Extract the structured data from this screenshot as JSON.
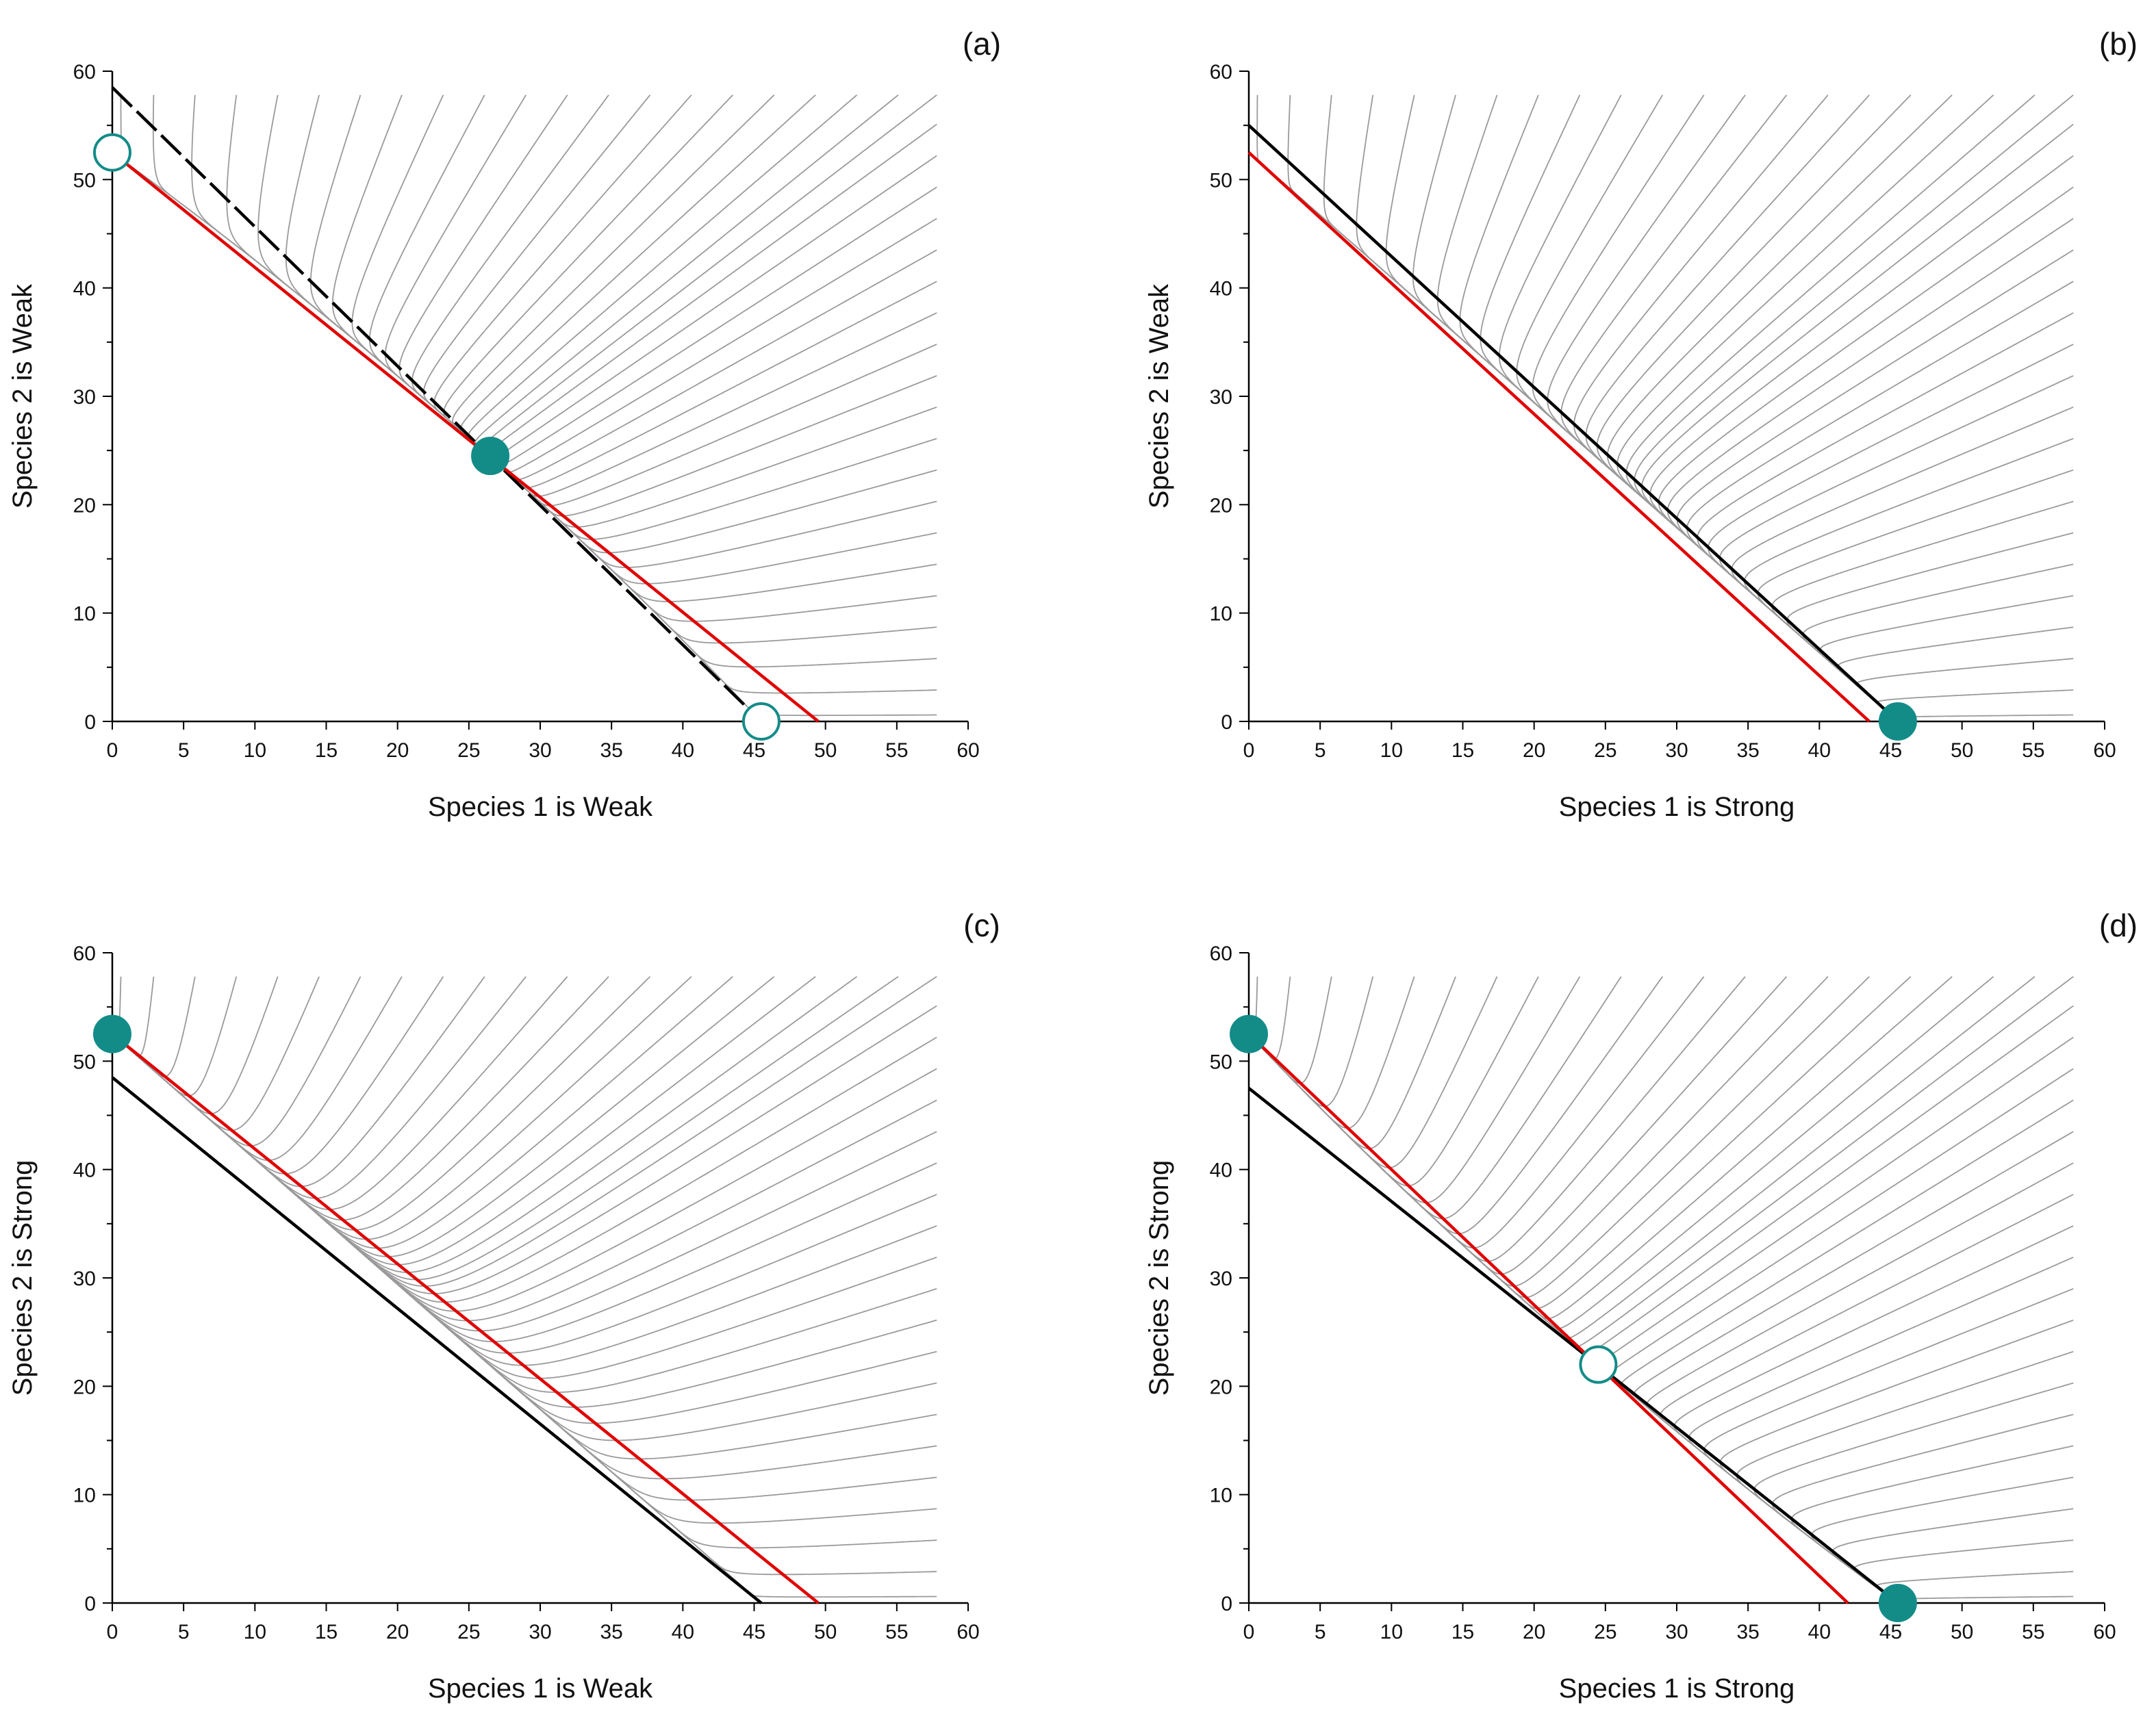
{
  "chart_data": [
    {
      "type": "line",
      "panel_label": "(a)",
      "xlabel": "Species 1 is Weak",
      "ylabel": "Species 2 is Weak",
      "xlim": [
        0,
        60
      ],
      "ylim": [
        0,
        60
      ],
      "xticks": [
        "0",
        "5",
        "10",
        "15",
        "20",
        "25",
        "30",
        "35",
        "40",
        "45",
        "50",
        "55",
        "60"
      ],
      "yticks": [
        "0",
        "10",
        "20",
        "30",
        "40",
        "50",
        "60"
      ],
      "nullclines": [
        {
          "color": "#000000",
          "style": "dashed",
          "x": [
            0,
            45.5
          ],
          "y": [
            58.5,
            0
          ]
        },
        {
          "color": "#e00000",
          "style": "solid",
          "x": [
            0,
            49.5
          ],
          "y": [
            52.5,
            0
          ]
        }
      ],
      "equilibria": [
        {
          "x": 0,
          "y": 52.5,
          "filled": false
        },
        {
          "x": 26.5,
          "y": 24.5,
          "filled": true
        },
        {
          "x": 45.5,
          "y": 0,
          "filled": false
        }
      ],
      "trajectory_color": "#9a9a9a"
    },
    {
      "type": "line",
      "panel_label": "(b)",
      "xlabel": "Species 1 is Strong",
      "ylabel": "Species 2 is Weak",
      "xlim": [
        0,
        60
      ],
      "ylim": [
        0,
        60
      ],
      "xticks": [
        "0",
        "5",
        "10",
        "15",
        "20",
        "25",
        "30",
        "35",
        "40",
        "45",
        "50",
        "55",
        "60"
      ],
      "yticks": [
        "0",
        "10",
        "20",
        "30",
        "40",
        "50",
        "60"
      ],
      "nullclines": [
        {
          "color": "#000000",
          "style": "solid",
          "x": [
            0,
            45.5
          ],
          "y": [
            55,
            0
          ]
        },
        {
          "color": "#e00000",
          "style": "solid",
          "x": [
            0,
            43.5
          ],
          "y": [
            52.5,
            0
          ]
        }
      ],
      "equilibria": [
        {
          "x": 45.5,
          "y": 0,
          "filled": true
        }
      ],
      "trajectory_color": "#9a9a9a"
    },
    {
      "type": "line",
      "panel_label": "(c)",
      "xlabel": "Species 1 is Weak",
      "ylabel": "Species 2 is Strong",
      "xlim": [
        0,
        60
      ],
      "ylim": [
        0,
        60
      ],
      "xticks": [
        "0",
        "5",
        "10",
        "15",
        "20",
        "25",
        "30",
        "35",
        "40",
        "45",
        "50",
        "55",
        "60"
      ],
      "yticks": [
        "0",
        "10",
        "20",
        "30",
        "40",
        "50",
        "60"
      ],
      "nullclines": [
        {
          "color": "#000000",
          "style": "solid",
          "x": [
            0,
            45.5
          ],
          "y": [
            48.5,
            0
          ]
        },
        {
          "color": "#e00000",
          "style": "solid",
          "x": [
            0,
            49.5
          ],
          "y": [
            52.5,
            0
          ]
        }
      ],
      "equilibria": [
        {
          "x": 0,
          "y": 52.5,
          "filled": true
        }
      ],
      "trajectory_color": "#9a9a9a"
    },
    {
      "type": "line",
      "panel_label": "(d)",
      "xlabel": "Species 1 is Strong",
      "ylabel": "Species 2 is Strong",
      "xlim": [
        0,
        60
      ],
      "ylim": [
        0,
        60
      ],
      "xticks": [
        "0",
        "5",
        "10",
        "15",
        "20",
        "25",
        "30",
        "35",
        "40",
        "45",
        "50",
        "55",
        "60"
      ],
      "yticks": [
        "0",
        "10",
        "20",
        "30",
        "40",
        "50",
        "60"
      ],
      "nullclines": [
        {
          "color": "#000000",
          "style": "solid",
          "x": [
            0,
            45.5
          ],
          "y": [
            47.5,
            0
          ]
        },
        {
          "color": "#e00000",
          "style": "solid",
          "x": [
            0,
            42
          ],
          "y": [
            52.5,
            0
          ]
        }
      ],
      "equilibria": [
        {
          "x": 0,
          "y": 52.5,
          "filled": true
        },
        {
          "x": 24.5,
          "y": 22,
          "filled": false
        },
        {
          "x": 45.5,
          "y": 0,
          "filled": true
        }
      ],
      "trajectory_color": "#9a9a9a"
    }
  ]
}
